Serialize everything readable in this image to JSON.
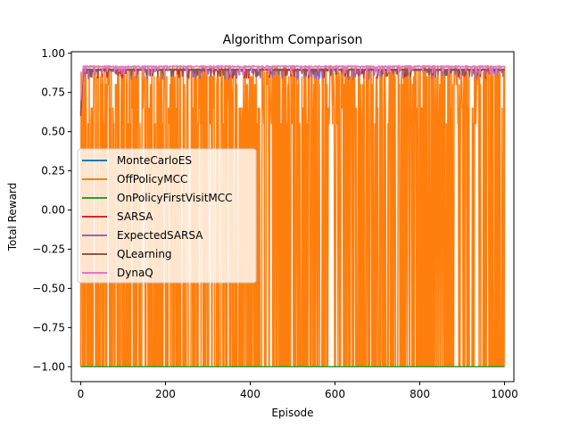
{
  "chart_data": {
    "type": "line",
    "title": "Algorithm Comparison",
    "xlabel": "Episode",
    "ylabel": "Total Reward",
    "xlim": [
      -22,
      1022
    ],
    "ylim": [
      -1.095,
      1.01
    ],
    "xticks": [
      0,
      200,
      400,
      600,
      800,
      1000
    ],
    "yticks": [
      -1.0,
      -0.75,
      -0.5,
      -0.25,
      0.0,
      0.25,
      0.5,
      0.75,
      1.0
    ],
    "xtick_labels": [
      "0",
      "200",
      "400",
      "600",
      "800",
      "1000"
    ],
    "ytick_labels": [
      "−1.00",
      "−0.75",
      "−0.50",
      "−0.25",
      "0.00",
      "0.25",
      "0.50",
      "0.75",
      "1.00"
    ],
    "legend_position": "center-left",
    "episodes": 1000,
    "series": [
      {
        "name": "MonteCarloES",
        "color": "#1f77b4",
        "pattern": "constant",
        "value": -1.0
      },
      {
        "name": "OffPolicyMCC",
        "color": "#ff7f0e",
        "pattern": "noisy",
        "high_values": [
          0.92,
          0.9,
          0.88,
          0.85,
          0.8,
          0.65,
          0.55
        ],
        "low_value": -1.0,
        "drop_probability": 0.45
      },
      {
        "name": "OnPolicyFirstVisitMCC",
        "color": "#2ca02c",
        "pattern": "constant",
        "value": -1.0
      },
      {
        "name": "SARSA",
        "color": "#d62728",
        "pattern": "plateau",
        "start": 0.6,
        "plateau": 0.9,
        "dip_min": 0.84
      },
      {
        "name": "ExpectedSARSA",
        "color": "#9467bd",
        "pattern": "plateau",
        "start": 0.65,
        "plateau": 0.9,
        "dip_min": 0.83
      },
      {
        "name": "QLearning",
        "color": "#8c564b",
        "pattern": "plateau",
        "start": 0.62,
        "plateau": 0.9,
        "dip_min": 0.85
      },
      {
        "name": "DynaQ",
        "color": "#e377c2",
        "pattern": "plateau",
        "start": 0.7,
        "plateau": 0.92,
        "dip_min": 0.86
      }
    ]
  }
}
